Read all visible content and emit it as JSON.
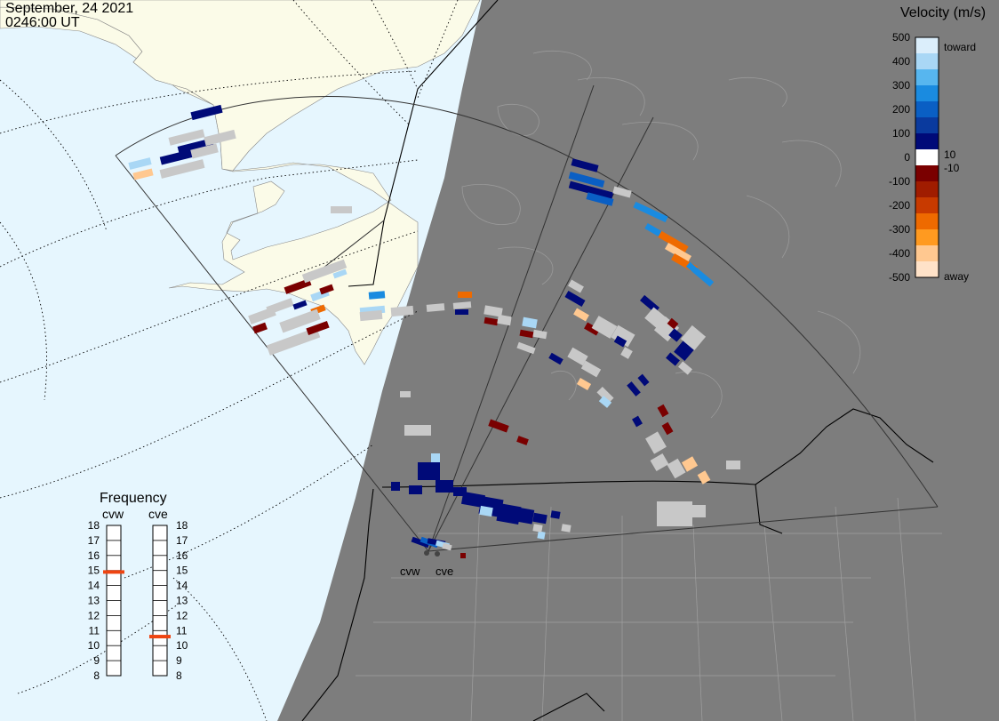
{
  "header": {
    "date": "September, 24 2021",
    "time": "0246:00 UT"
  },
  "velocity_legend": {
    "title": "Velocity (m/s)",
    "ticks": [
      "500",
      "400",
      "300",
      "200",
      "100",
      "0",
      "-100",
      "-200",
      "-300",
      "-400",
      "-500"
    ],
    "toward_label": "toward",
    "away_label": "away",
    "label_pos": "10",
    "label_neg": "-10",
    "colors": [
      "#dbeefb",
      "#a9d7f5",
      "#57b6ef",
      "#1a8be0",
      "#0a5fc4",
      "#0a3a9e",
      "#000a78",
      "#ffffff",
      "#7a0000",
      "#a01c00",
      "#c83a00",
      "#ee6a00",
      "#ff9a20",
      "#ffc890",
      "#ffe2c8"
    ]
  },
  "frequency_legend": {
    "title": "Frequency",
    "radars": [
      {
        "name": "cvw",
        "frequency": 14.9
      },
      {
        "name": "cve",
        "frequency": 10.6
      }
    ],
    "ticks": [
      "18",
      "17",
      "16",
      "15",
      "14",
      "13",
      "12",
      "11",
      "10",
      "9",
      "8"
    ],
    "marker_color": "#ee4411"
  },
  "radar_labels": [
    "cvw",
    "cve"
  ],
  "colors": {
    "ocean": "#e6f6fe",
    "land": "#fbfbe8",
    "night": "#7d7d7d",
    "ground_scatter": "#c8c8c8"
  }
}
